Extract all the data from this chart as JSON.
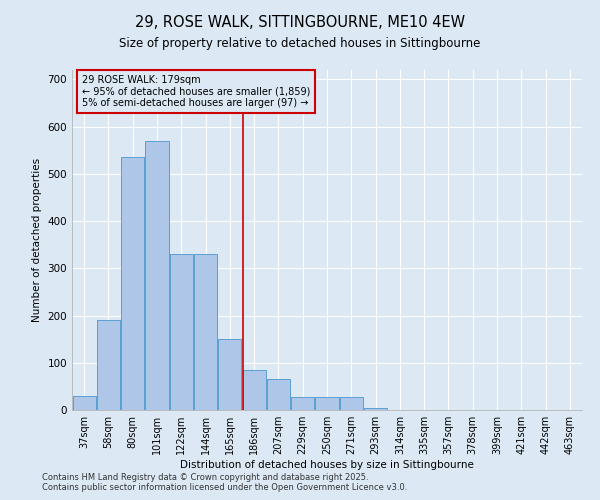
{
  "title1": "29, ROSE WALK, SITTINGBOURNE, ME10 4EW",
  "title2": "Size of property relative to detached houses in Sittingbourne",
  "xlabel": "Distribution of detached houses by size in Sittingbourne",
  "ylabel": "Number of detached properties",
  "categories": [
    "37sqm",
    "58sqm",
    "80sqm",
    "101sqm",
    "122sqm",
    "144sqm",
    "165sqm",
    "186sqm",
    "207sqm",
    "229sqm",
    "250sqm",
    "271sqm",
    "293sqm",
    "314sqm",
    "335sqm",
    "357sqm",
    "378sqm",
    "399sqm",
    "421sqm",
    "442sqm",
    "463sqm"
  ],
  "values": [
    30,
    190,
    535,
    570,
    330,
    330,
    150,
    85,
    65,
    28,
    28,
    28,
    5,
    0,
    0,
    0,
    0,
    0,
    0,
    0,
    0
  ],
  "bar_color": "#aec6e8",
  "bar_edge_color": "#5a9fd4",
  "vline_color": "#cc0000",
  "annotation_text": "29 ROSE WALK: 179sqm\n← 95% of detached houses are smaller (1,859)\n5% of semi-detached houses are larger (97) →",
  "annotation_box_color": "#cc0000",
  "ylim": [
    0,
    720
  ],
  "yticks": [
    0,
    100,
    200,
    300,
    400,
    500,
    600,
    700
  ],
  "background_color": "#dce9f5",
  "footnote": "Contains HM Land Registry data © Crown copyright and database right 2025.\nContains public sector information licensed under the Open Government Licence v3.0."
}
